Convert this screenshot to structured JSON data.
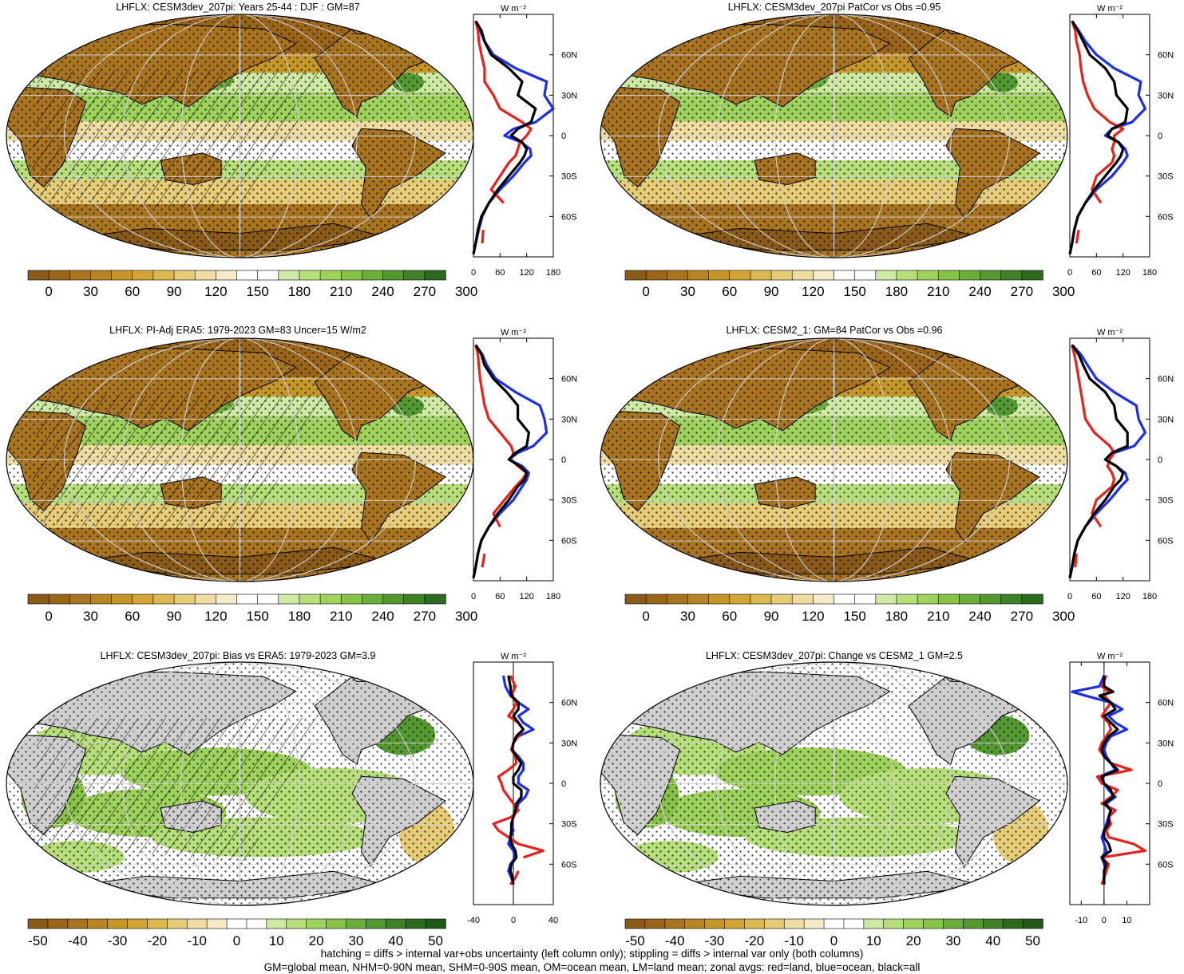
{
  "figure": {
    "footnote_1": "hatching = diffs > internal var+obs uncertainty (left column only); stippling = diffs > internal var only (both columns)",
    "footnote_2": "GM=global mean, NHM=0-90N mean, SHM=0-90S mean, OM=ocean mean, LM=land mean; zonal avgs: red=land, blue=ocean, black=all"
  },
  "colors": {
    "land": "#e8211d",
    "ocean": "#1c2fe6",
    "all": "#000000",
    "missing": "#cfcfcf",
    "graticule": "#d0d0d0"
  },
  "colorbars": {
    "absolute": {
      "colors": [
        "#8a5a18",
        "#9a6518",
        "#a87420",
        "#b88524",
        "#c59628",
        "#d2a536",
        "#dcb850",
        "#e6cc76",
        "#efdca0",
        "#f6ebc9",
        "#ffffff",
        "#ffffff",
        "#cde9a4",
        "#b6df7a",
        "#9fd25c",
        "#88c348",
        "#6cae3c",
        "#549832",
        "#3f8028",
        "#2c6a20"
      ],
      "labels": [
        "0",
        "30",
        "60",
        "90",
        "120",
        "150",
        "180",
        "210",
        "240",
        "270",
        "300"
      ]
    },
    "difference": {
      "colors": [
        "#8a5a18",
        "#9a6518",
        "#a87420",
        "#b88524",
        "#c59628",
        "#d2a536",
        "#dcb850",
        "#e6cc76",
        "#efdca0",
        "#f6ebc9",
        "#ffffff",
        "#ffffff",
        "#cde9a4",
        "#b6df7a",
        "#9fd25c",
        "#88c348",
        "#6cae3c",
        "#549832",
        "#3f8028",
        "#2c6a20",
        "#1f5818"
      ],
      "labels": [
        "-50",
        "-40",
        "-30",
        "-20",
        "-10",
        "0",
        "10",
        "20",
        "30",
        "40",
        "50"
      ]
    }
  },
  "chart_data": [
    {
      "type": "heatmap",
      "title": "LHFLX: CESM3dev_207pi: Years 25-44 : DJF : GM=87",
      "colorbar": "absolute",
      "hatching": true,
      "stippling": true,
      "zonal_profile": {
        "type": "line",
        "unit": "W m⁻²",
        "xlim": [
          0,
          180
        ],
        "ylim": [
          -90,
          90
        ],
        "xticks": [
          "0",
          "60",
          "120",
          "180"
        ],
        "yticks": [
          "60N",
          "30N",
          "0",
          "30S",
          "60S"
        ],
        "lat": [
          85,
          78,
          70,
          60,
          50,
          40,
          30,
          20,
          10,
          5,
          0,
          -5,
          -10,
          -15,
          -20,
          -30,
          -40,
          -50,
          -60,
          -70,
          -80,
          -88
        ],
        "series": [
          {
            "key": "land",
            "values": [
              5,
              10,
              12,
              18,
              25,
              25,
              45,
              60,
              110,
              130,
              120,
              105,
              100,
              95,
              80,
              60,
              40,
              68,
              null,
              22,
              20,
              null
            ]
          },
          {
            "key": "ocean",
            "values": [
              5,
              15,
              25,
              45,
              95,
              165,
              160,
              180,
              140,
              90,
              70,
              108,
              128,
              130,
              115,
              90,
              60,
              35,
              20,
              12,
              5,
              0
            ]
          },
          {
            "key": "all",
            "values": [
              5,
              18,
              25,
              40,
              80,
              110,
              100,
              140,
              130,
              100,
              85,
              110,
              120,
              115,
              105,
              80,
              55,
              35,
              18,
              10,
              5,
              0
            ]
          }
        ]
      }
    },
    {
      "type": "heatmap",
      "title": "LHFLX: CESM3dev_207pi PatCor vs Obs =0.95",
      "colorbar": "absolute",
      "hatching": false,
      "stippling": true,
      "zonal_profile": {
        "type": "line",
        "unit": "W m⁻²",
        "xlim": [
          0,
          180
        ],
        "ylim": [
          -90,
          90
        ],
        "xticks": [
          "0",
          "60",
          "120",
          "180"
        ],
        "yticks": [
          "60N",
          "30N",
          "0",
          "30S",
          "60S"
        ],
        "lat": [
          85,
          78,
          70,
          60,
          50,
          40,
          30,
          20,
          10,
          5,
          0,
          -5,
          -10,
          -15,
          -20,
          -30,
          -40,
          -50,
          -60,
          -70,
          -80,
          -88
        ],
        "series": [
          {
            "key": "land",
            "values": [
              5,
              12,
              15,
              22,
              25,
              30,
              40,
              55,
              90,
              120,
              100,
              100,
              95,
              100,
              95,
              60,
              50,
              70,
              null,
              20,
              15,
              null
            ]
          },
          {
            "key": "ocean",
            "values": [
              5,
              20,
              35,
              60,
              100,
              160,
              155,
              170,
              140,
              95,
              80,
              110,
              125,
              130,
              120,
              95,
              60,
              35,
              18,
              10,
              5,
              0
            ]
          },
          {
            "key": "all",
            "values": [
              5,
              18,
              30,
              45,
              80,
              100,
              105,
              130,
              125,
              95,
              85,
              110,
              120,
              115,
              105,
              80,
              55,
              35,
              18,
              10,
              5,
              0
            ]
          }
        ]
      }
    },
    {
      "type": "heatmap",
      "title": "LHFLX: PI-Adj ERA5: 1979-2023 GM=83 Uncer=15 W/m2",
      "colorbar": "absolute",
      "hatching": true,
      "stippling": true,
      "zonal_profile": {
        "type": "line",
        "unit": "W m⁻²",
        "xlim": [
          0,
          180
        ],
        "ylim": [
          -90,
          90
        ],
        "xticks": [
          "0",
          "60",
          "120",
          "180"
        ],
        "yticks": [
          "60N",
          "30N",
          "0",
          "30S",
          "60S"
        ],
        "lat": [
          85,
          78,
          70,
          60,
          50,
          40,
          30,
          20,
          10,
          5,
          0,
          -5,
          -10,
          -15,
          -20,
          -30,
          -40,
          -50,
          -60,
          -70,
          -80,
          -88
        ],
        "series": [
          {
            "key": "land",
            "values": [
              5,
              10,
              12,
              15,
              20,
              25,
              35,
              60,
              85,
              90,
              85,
              100,
              120,
              110,
              95,
              70,
              45,
              60,
              null,
              25,
              20,
              null
            ]
          },
          {
            "key": "ocean",
            "values": [
              5,
              20,
              30,
              50,
              95,
              150,
              160,
              165,
              135,
              100,
              80,
              110,
              125,
              120,
              110,
              90,
              60,
              35,
              18,
              10,
              5,
              0
            ]
          },
          {
            "key": "all",
            "values": [
              5,
              18,
              25,
              45,
              75,
              100,
              100,
              125,
              120,
              95,
              80,
              105,
              120,
              115,
              100,
              80,
              55,
              35,
              18,
              10,
              5,
              0
            ]
          }
        ]
      }
    },
    {
      "type": "heatmap",
      "title": "LHFLX: CESM2_1: GM=84 PatCor vs Obs =0.96",
      "colorbar": "absolute",
      "hatching": false,
      "stippling": true,
      "zonal_profile": {
        "type": "line",
        "unit": "W m⁻²",
        "xlim": [
          0,
          180
        ],
        "ylim": [
          -90,
          90
        ],
        "xticks": [
          "0",
          "60",
          "120",
          "180"
        ],
        "yticks": [
          "60N",
          "30N",
          "0",
          "30S",
          "60S"
        ],
        "lat": [
          85,
          78,
          70,
          60,
          50,
          40,
          30,
          20,
          10,
          5,
          0,
          -5,
          -10,
          -15,
          -20,
          -30,
          -40,
          -50,
          -60,
          -70,
          -80,
          -88
        ],
        "series": [
          {
            "key": "land",
            "values": [
              5,
              10,
              15,
              20,
              25,
              30,
              35,
              55,
              90,
              100,
              90,
              85,
              95,
              100,
              95,
              60,
              50,
              70,
              null,
              15,
              12,
              null
            ]
          },
          {
            "key": "ocean",
            "values": [
              5,
              25,
              40,
              60,
              100,
              150,
              155,
              170,
              145,
              100,
              80,
              105,
              125,
              130,
              115,
              90,
              60,
              35,
              18,
              10,
              5,
              0
            ]
          },
          {
            "key": "all",
            "values": [
              5,
              20,
              30,
              45,
              80,
              100,
              105,
              130,
              130,
              95,
              80,
              105,
              120,
              115,
              100,
              80,
              55,
              35,
              18,
              10,
              5,
              0
            ]
          }
        ]
      }
    },
    {
      "type": "heatmap",
      "title": "LHFLX: CESM3dev_207pi: Bias vs ERA5: 1979-2023 GM=3.9",
      "colorbar": "difference",
      "hatching": true,
      "stippling": true,
      "zonal_profile": {
        "type": "line",
        "unit": "W m⁻²",
        "xlim": [
          -40,
          40
        ],
        "ylim": [
          -90,
          90
        ],
        "xticks": [
          "-40",
          "0",
          "40"
        ],
        "yticks": [
          "60N",
          "30N",
          "0",
          "30S",
          "60S"
        ],
        "lat": [
          80,
          72,
          65,
          60,
          55,
          50,
          45,
          40,
          35,
          30,
          25,
          20,
          15,
          10,
          5,
          0,
          -5,
          -10,
          -15,
          -20,
          -25,
          -30,
          -35,
          -40,
          -45,
          -50,
          -55,
          -60,
          -65,
          -70,
          -75
        ],
        "series": [
          {
            "key": "land",
            "values": [
              -3,
              2,
              -2,
              3,
              0,
              -5,
              5,
              10,
              5,
              0,
              -2,
              2,
              3,
              -5,
              -15,
              -12,
              -10,
              -5,
              0,
              5,
              -2,
              -20,
              -15,
              -5,
              5,
              30,
              10,
              null,
              5,
              2,
              -3
            ]
          },
          {
            "key": "ocean",
            "values": [
              -10,
              -8,
              -3,
              5,
              15,
              5,
              10,
              20,
              5,
              0,
              -2,
              5,
              10,
              10,
              5,
              5,
              15,
              12,
              5,
              3,
              0,
              -2,
              0,
              -3,
              -5,
              0,
              2,
              -3,
              -5,
              -2,
              0
            ]
          },
          {
            "key": "all",
            "values": [
              -5,
              -3,
              -2,
              5,
              5,
              0,
              5,
              10,
              3,
              0,
              -1,
              3,
              8,
              5,
              0,
              0,
              8,
              8,
              3,
              2,
              0,
              -2,
              -2,
              -3,
              -2,
              2,
              3,
              -2,
              -3,
              -1,
              0
            ]
          }
        ]
      }
    },
    {
      "type": "heatmap",
      "title": "LHFLX: CESM3dev_207pi: Change vs CESM2_1 GM=2.5",
      "colorbar": "difference",
      "hatching": false,
      "stippling": true,
      "zonal_profile": {
        "type": "line",
        "unit": "W m⁻²",
        "xlim": [
          -15,
          20
        ],
        "ylim": [
          -90,
          90
        ],
        "xticks": [
          "-10",
          "0",
          "10"
        ],
        "yticks": [
          "60N",
          "30N",
          "0",
          "30S",
          "60S"
        ],
        "lat": [
          80,
          72,
          68,
          65,
          60,
          55,
          50,
          45,
          40,
          35,
          30,
          25,
          20,
          15,
          10,
          5,
          0,
          -5,
          -10,
          -15,
          -20,
          -25,
          -30,
          -35,
          -40,
          -45,
          -50,
          -55,
          -60,
          -65,
          -70,
          -75
        ],
        "series": [
          {
            "key": "land",
            "values": [
              1,
              -1,
              2,
              0,
              3,
              1,
              -1,
              2,
              3,
              1,
              -1,
              -2,
              0,
              3,
              12,
              -3,
              -1,
              6,
              3,
              -1,
              5,
              2,
              3,
              1,
              2,
              13,
              18,
              -1,
              2,
              1,
              0,
              -1
            ]
          },
          {
            "key": "ocean",
            "values": [
              0,
              -2,
              -14,
              -8,
              3,
              8,
              2,
              5,
              10,
              3,
              1,
              0,
              1,
              3,
              5,
              -2,
              0,
              2,
              5,
              1,
              3,
              2,
              1,
              0,
              -1,
              0,
              1,
              -1,
              0,
              1,
              0,
              0
            ]
          },
          {
            "key": "all",
            "values": [
              0,
              0,
              4,
              -2,
              3,
              5,
              0,
              3,
              6,
              2,
              0,
              -1,
              0,
              3,
              6,
              -1,
              0,
              3,
              4,
              0,
              3,
              2,
              2,
              0,
              0,
              2,
              3,
              -1,
              1,
              0,
              0,
              0
            ]
          }
        ]
      }
    }
  ]
}
